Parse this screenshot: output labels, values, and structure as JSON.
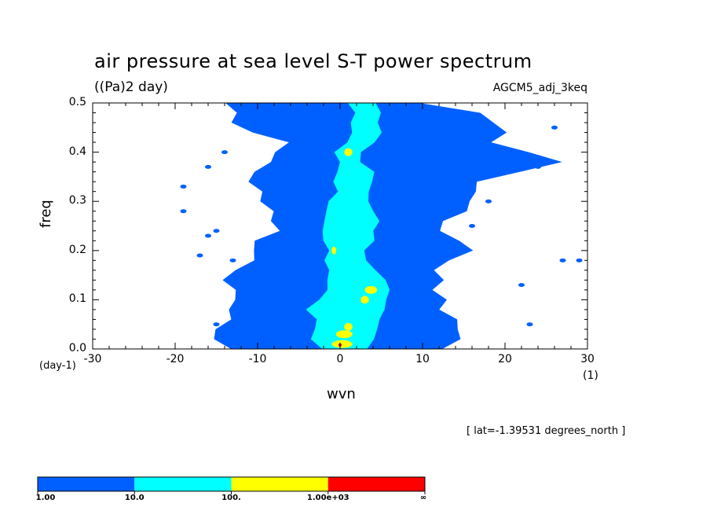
{
  "chart_data": {
    "type": "heatmap",
    "title": "air pressure at sea level S-T power spectrum",
    "units_label": "((Pa)2 day)",
    "model_label": "AGCM5_adj_3keq",
    "xlabel": "wvn",
    "ylabel": "freq",
    "x_unit": "(1)",
    "y_unit": "(day-1)",
    "annotation": "[ lat=-1.39531 degrees_north ]",
    "xlim": [
      -30,
      30
    ],
    "ylim": [
      0,
      0.5
    ],
    "xticks": [
      -30,
      -20,
      -10,
      0,
      10,
      20,
      30
    ],
    "xtick_labels": [
      "-30",
      "-20",
      "-10",
      "0",
      "10",
      "20",
      "30"
    ],
    "yticks": [
      0.0,
      0.1,
      0.2,
      0.3,
      0.4,
      0.5
    ],
    "ytick_labels": [
      "0.0",
      "0.1",
      "0.2",
      "0.3",
      "0.4",
      "0.5"
    ],
    "levels": [
      1,
      10,
      100,
      1000
    ],
    "colorbar_labels": [
      "1.00",
      "10.0",
      "100.",
      "1.00e+03",
      "∞"
    ],
    "colors": [
      "#0060ff",
      "#00ffff",
      "#ffff00",
      "#ff0000"
    ],
    "freq_rows": [
      0.0,
      0.02,
      0.04,
      0.06,
      0.08,
      0.1,
      0.12,
      0.14,
      0.16,
      0.18,
      0.2,
      0.22,
      0.24,
      0.26,
      0.28,
      0.3,
      0.32,
      0.34,
      0.36,
      0.38,
      0.4,
      0.42,
      0.44,
      0.46,
      0.48,
      0.5
    ],
    "regions": {
      "blue": [
        {
          "f": 0.0,
          "w": [
            -12,
            11
          ]
        },
        {
          "f": 0.02,
          "w": [
            -15,
            14
          ]
        },
        {
          "f": 0.04,
          "w": [
            -14,
            13
          ]
        },
        {
          "f": 0.06,
          "w": [
            -13,
            12
          ]
        },
        {
          "f": 0.08,
          "w": [
            -12,
            11
          ]
        },
        {
          "f": 0.1,
          "w": [
            -12,
            11
          ]
        },
        {
          "f": 0.12,
          "w": [
            -11,
            11
          ]
        },
        {
          "f": 0.14,
          "w": [
            -13,
            12
          ]
        },
        {
          "f": 0.16,
          "w": [
            -11,
            11
          ]
        },
        {
          "f": 0.18,
          "w": [
            -9,
            12
          ]
        },
        {
          "f": 0.2,
          "w": [
            -10,
            16
          ]
        },
        {
          "f": 0.22,
          "w": [
            -8,
            12
          ]
        },
        {
          "f": 0.24,
          "w": [
            -7,
            11
          ]
        },
        {
          "f": 0.26,
          "w": [
            -6,
            12
          ]
        },
        {
          "f": 0.28,
          "w": [
            -7,
            14
          ]
        },
        {
          "f": 0.3,
          "w": [
            -8,
            15
          ]
        },
        {
          "f": 0.32,
          "w": [
            -9,
            14
          ]
        },
        {
          "f": 0.34,
          "w": [
            -10,
            16
          ]
        },
        {
          "f": 0.36,
          "w": [
            -9,
            21
          ]
        },
        {
          "f": 0.38,
          "w": [
            -8,
            25
          ]
        },
        {
          "f": 0.4,
          "w": [
            -7,
            22
          ]
        },
        {
          "f": 0.42,
          "w": [
            -6,
            16
          ]
        },
        {
          "f": 0.44,
          "w": [
            -10,
            18
          ]
        },
        {
          "f": 0.46,
          "w": [
            -12,
            18
          ]
        },
        {
          "f": 0.48,
          "w": [
            -11,
            16
          ]
        },
        {
          "f": 0.5,
          "w": [
            -12,
            8
          ]
        }
      ],
      "cyan": [
        {
          "f": 0.0,
          "w": [
            -2,
            3
          ]
        },
        {
          "f": 0.02,
          "w": [
            -3,
            4
          ]
        },
        {
          "f": 0.04,
          "w": [
            -3,
            4
          ]
        },
        {
          "f": 0.06,
          "w": [
            -2,
            4
          ]
        },
        {
          "f": 0.08,
          "w": [
            -3,
            5
          ]
        },
        {
          "f": 0.1,
          "w": [
            -2,
            5
          ]
        },
        {
          "f": 0.12,
          "w": [
            -1,
            5
          ]
        },
        {
          "f": 0.14,
          "w": [
            -1,
            5
          ]
        },
        {
          "f": 0.16,
          "w": [
            -1,
            4
          ]
        },
        {
          "f": 0.18,
          "w": [
            -1,
            3
          ]
        },
        {
          "f": 0.2,
          "w": [
            -1,
            2
          ]
        },
        {
          "f": 0.22,
          "w": [
            -1,
            3
          ]
        },
        {
          "f": 0.24,
          "w": [
            -1,
            3
          ]
        },
        {
          "f": 0.26,
          "w": [
            -1,
            4
          ]
        },
        {
          "f": 0.28,
          "w": [
            -1,
            4
          ]
        },
        {
          "f": 0.3,
          "w": [
            -1,
            3
          ]
        },
        {
          "f": 0.32,
          "w": [
            0,
            3
          ]
        },
        {
          "f": 0.34,
          "w": [
            0,
            3
          ]
        },
        {
          "f": 0.36,
          "w": [
            0,
            3
          ]
        },
        {
          "f": 0.38,
          "w": [
            0,
            2
          ]
        },
        {
          "f": 0.4,
          "w": [
            0,
            2
          ]
        },
        {
          "f": 0.42,
          "w": [
            1,
            3
          ]
        },
        {
          "f": 0.44,
          "w": [
            2,
            4
          ]
        },
        {
          "f": 0.46,
          "w": [
            2,
            4
          ]
        },
        {
          "f": 0.48,
          "w": [
            2,
            4
          ]
        },
        {
          "f": 0.5,
          "w": [
            2,
            4
          ]
        }
      ],
      "yellow": [
        {
          "f": 0.01,
          "w": [
            -1,
            1.5
          ]
        },
        {
          "f": 0.03,
          "w": [
            -0.5,
            1.5
          ]
        },
        {
          "f": 0.045,
          "w": [
            0.5,
            1.5
          ]
        },
        {
          "f": 0.12,
          "w": [
            3,
            4.5
          ]
        },
        {
          "f": 0.1,
          "w": [
            2.5,
            3.5
          ]
        },
        {
          "f": 0.2,
          "w": [
            -1,
            -0.5
          ]
        },
        {
          "f": 0.4,
          "w": [
            0.5,
            1.5
          ]
        }
      ]
    }
  }
}
